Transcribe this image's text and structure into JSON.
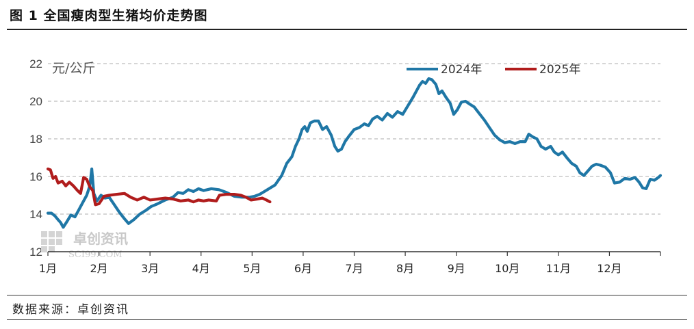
{
  "figure": {
    "title": "图 1  全国瘦肉型生猪均价走势图",
    "source": "数据来源：卓创资讯"
  },
  "watermark": {
    "cn": "卓创资讯",
    "en": "SCI99.COM"
  },
  "colors": {
    "series_2024": "#1f77a6",
    "series_2025": "#b01c1c",
    "grid": "#bdbdbd",
    "axis": "#333333"
  },
  "chart_data": {
    "type": "line",
    "unit_label": "元/公斤",
    "ylim": [
      12,
      22
    ],
    "y_ticks": [
      "12",
      "14",
      "16",
      "18",
      "20",
      "22"
    ],
    "x_domain": [
      1,
      13
    ],
    "x_tick_labels": [
      "1月",
      "2月",
      "3月",
      "4月",
      "5月",
      "6月",
      "7月",
      "8月",
      "9月",
      "10月",
      "11月",
      "12月"
    ],
    "grid": "horizontal-dashed",
    "legend_position": "top-right",
    "series": [
      {
        "name": "2024年",
        "points": [
          [
            1.0,
            14.05
          ],
          [
            1.07,
            14.05
          ],
          [
            1.14,
            13.9
          ],
          [
            1.2,
            13.7
          ],
          [
            1.25,
            13.55
          ],
          [
            1.3,
            13.3
          ],
          [
            1.36,
            13.55
          ],
          [
            1.45,
            13.95
          ],
          [
            1.53,
            13.85
          ],
          [
            1.6,
            14.2
          ],
          [
            1.68,
            14.6
          ],
          [
            1.76,
            15.0
          ],
          [
            1.82,
            15.5
          ],
          [
            1.86,
            16.4
          ],
          [
            1.9,
            15.1
          ],
          [
            1.96,
            14.7
          ],
          [
            2.04,
            15.0
          ],
          [
            2.12,
            14.85
          ],
          [
            2.2,
            14.9
          ],
          [
            2.3,
            14.5
          ],
          [
            2.4,
            14.1
          ],
          [
            2.5,
            13.75
          ],
          [
            2.58,
            13.5
          ],
          [
            2.68,
            13.7
          ],
          [
            2.8,
            14.0
          ],
          [
            2.92,
            14.2
          ],
          [
            3.02,
            14.4
          ],
          [
            3.15,
            14.55
          ],
          [
            3.3,
            14.75
          ],
          [
            3.45,
            14.9
          ],
          [
            3.55,
            15.15
          ],
          [
            3.65,
            15.1
          ],
          [
            3.75,
            15.3
          ],
          [
            3.85,
            15.2
          ],
          [
            3.95,
            15.35
          ],
          [
            4.05,
            15.25
          ],
          [
            4.2,
            15.35
          ],
          [
            4.35,
            15.3
          ],
          [
            4.5,
            15.15
          ],
          [
            4.65,
            14.95
          ],
          [
            4.8,
            14.9
          ],
          [
            4.95,
            14.9
          ],
          [
            5.05,
            14.95
          ],
          [
            5.15,
            15.05
          ],
          [
            5.3,
            15.3
          ],
          [
            5.45,
            15.55
          ],
          [
            5.58,
            16.05
          ],
          [
            5.68,
            16.7
          ],
          [
            5.78,
            17.05
          ],
          [
            5.85,
            17.6
          ],
          [
            5.92,
            18.0
          ],
          [
            5.98,
            18.5
          ],
          [
            6.03,
            18.65
          ],
          [
            6.08,
            18.4
          ],
          [
            6.14,
            18.85
          ],
          [
            6.22,
            18.95
          ],
          [
            6.3,
            18.95
          ],
          [
            6.38,
            18.5
          ],
          [
            6.46,
            18.65
          ],
          [
            6.55,
            18.2
          ],
          [
            6.62,
            17.6
          ],
          [
            6.68,
            17.35
          ],
          [
            6.75,
            17.45
          ],
          [
            6.82,
            17.85
          ],
          [
            6.9,
            18.15
          ],
          [
            7.0,
            18.5
          ],
          [
            7.1,
            18.6
          ],
          [
            7.2,
            18.8
          ],
          [
            7.28,
            18.7
          ],
          [
            7.36,
            19.05
          ],
          [
            7.45,
            19.2
          ],
          [
            7.55,
            19.0
          ],
          [
            7.65,
            19.35
          ],
          [
            7.75,
            19.15
          ],
          [
            7.85,
            19.45
          ],
          [
            7.95,
            19.3
          ],
          [
            8.05,
            19.75
          ],
          [
            8.15,
            20.2
          ],
          [
            8.22,
            20.55
          ],
          [
            8.28,
            20.85
          ],
          [
            8.34,
            21.05
          ],
          [
            8.4,
            20.95
          ],
          [
            8.46,
            21.2
          ],
          [
            8.52,
            21.15
          ],
          [
            8.6,
            20.9
          ],
          [
            8.66,
            20.4
          ],
          [
            8.72,
            20.55
          ],
          [
            8.8,
            20.2
          ],
          [
            8.88,
            19.9
          ],
          [
            8.95,
            19.3
          ],
          [
            9.02,
            19.55
          ],
          [
            9.1,
            19.95
          ],
          [
            9.18,
            20.0
          ],
          [
            9.26,
            19.85
          ],
          [
            9.35,
            19.7
          ],
          [
            9.45,
            19.35
          ],
          [
            9.55,
            19.0
          ],
          [
            9.65,
            18.6
          ],
          [
            9.75,
            18.2
          ],
          [
            9.85,
            17.95
          ],
          [
            9.95,
            17.8
          ],
          [
            10.05,
            17.85
          ],
          [
            10.15,
            17.75
          ],
          [
            10.25,
            17.85
          ],
          [
            10.35,
            17.85
          ],
          [
            10.42,
            18.25
          ],
          [
            10.5,
            18.1
          ],
          [
            10.58,
            18.0
          ],
          [
            10.66,
            17.6
          ],
          [
            10.75,
            17.45
          ],
          [
            10.85,
            17.6
          ],
          [
            10.92,
            17.3
          ],
          [
            11.0,
            17.15
          ],
          [
            11.08,
            17.3
          ],
          [
            11.18,
            16.95
          ],
          [
            11.26,
            16.7
          ],
          [
            11.35,
            16.55
          ],
          [
            11.42,
            16.2
          ],
          [
            11.5,
            16.05
          ],
          [
            11.58,
            16.3
          ],
          [
            11.66,
            16.55
          ],
          [
            11.74,
            16.65
          ],
          [
            11.82,
            16.6
          ],
          [
            11.92,
            16.5
          ],
          [
            12.02,
            16.2
          ],
          [
            12.1,
            15.65
          ],
          [
            12.2,
            15.7
          ],
          [
            12.3,
            15.9
          ],
          [
            12.4,
            15.85
          ],
          [
            12.5,
            15.95
          ],
          [
            12.58,
            15.7
          ],
          [
            12.65,
            15.4
          ],
          [
            12.72,
            15.35
          ],
          [
            12.8,
            15.85
          ],
          [
            12.88,
            15.8
          ],
          [
            12.96,
            15.95
          ],
          [
            13.0,
            16.05
          ]
        ]
      },
      {
        "name": "2025年",
        "points": [
          [
            1.0,
            16.4
          ],
          [
            1.05,
            16.35
          ],
          [
            1.1,
            15.9
          ],
          [
            1.15,
            16.0
          ],
          [
            1.2,
            15.65
          ],
          [
            1.28,
            15.75
          ],
          [
            1.35,
            15.5
          ],
          [
            1.42,
            15.7
          ],
          [
            1.5,
            15.5
          ],
          [
            1.58,
            15.25
          ],
          [
            1.64,
            15.1
          ],
          [
            1.7,
            15.95
          ],
          [
            1.76,
            15.85
          ],
          [
            1.82,
            15.45
          ],
          [
            1.88,
            15.25
          ],
          [
            1.93,
            14.5
          ],
          [
            2.0,
            14.55
          ],
          [
            2.1,
            14.95
          ],
          [
            2.2,
            15.0
          ],
          [
            2.35,
            15.05
          ],
          [
            2.5,
            15.1
          ],
          [
            2.62,
            14.9
          ],
          [
            2.75,
            14.75
          ],
          [
            2.88,
            14.9
          ],
          [
            3.0,
            14.75
          ],
          [
            3.15,
            14.8
          ],
          [
            3.3,
            14.85
          ],
          [
            3.45,
            14.8
          ],
          [
            3.6,
            14.7
          ],
          [
            3.75,
            14.75
          ],
          [
            3.85,
            14.65
          ],
          [
            3.95,
            14.75
          ],
          [
            4.05,
            14.7
          ],
          [
            4.15,
            14.75
          ],
          [
            4.3,
            14.7
          ],
          [
            4.36,
            15.0
          ],
          [
            4.5,
            15.05
          ],
          [
            4.65,
            15.05
          ],
          [
            4.78,
            15.0
          ],
          [
            4.88,
            14.9
          ],
          [
            4.98,
            14.75
          ],
          [
            5.1,
            14.8
          ],
          [
            5.2,
            14.85
          ],
          [
            5.28,
            14.75
          ],
          [
            5.35,
            14.65
          ]
        ]
      }
    ]
  }
}
